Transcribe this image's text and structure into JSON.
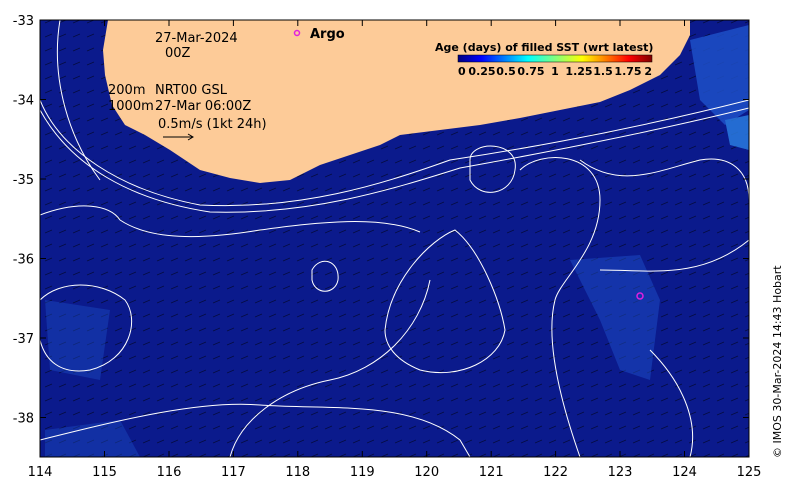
{
  "map": {
    "lon_ticks": [
      "114",
      "115",
      "116",
      "117",
      "118",
      "119",
      "120",
      "121",
      "122",
      "123",
      "124",
      "125"
    ],
    "lat_ticks": [
      "-33",
      "-34",
      "-35",
      "-36",
      "-37",
      "-38"
    ],
    "date_line1": "27-Mar-2024",
    "date_line2": "00Z",
    "contour_label_200": "200m",
    "contour_label_1000": "1000m",
    "product_line1": "NRT00 GSL",
    "product_line2": "27-Mar 06:00Z",
    "vector_scale": "0.5m/s (1kt 24h)",
    "argo_label": "Argo",
    "legend_title": "Age (days) of filled SST (wrt latest)",
    "legend_ticks": [
      "0",
      "0.25",
      "0.5",
      "0.75",
      "1",
      "1.25",
      "1.5",
      "1.75",
      "2"
    ],
    "credit": "© IMOS 30-Mar-2024 14:43 Hobart",
    "colors": {
      "ocean": "#0b1a8c",
      "land": "#fdcb98",
      "argo": "#e020e0",
      "contour": "#ffffff"
    }
  }
}
